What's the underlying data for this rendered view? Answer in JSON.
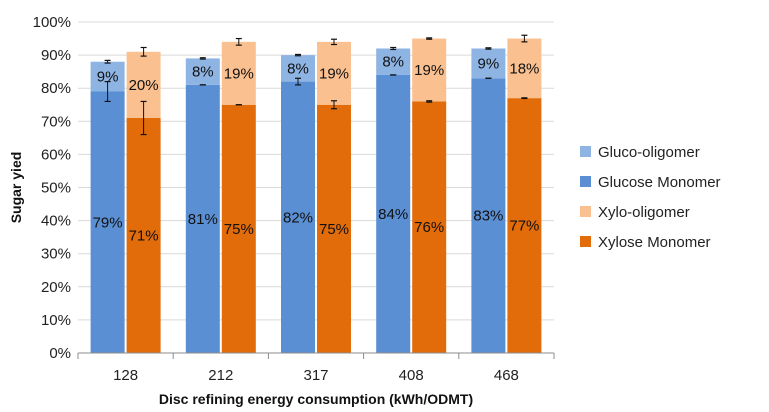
{
  "chart_data": {
    "type": "bar",
    "subtype": "grouped-stacked",
    "xlabel": "Disc refining energy consumption (kWh/ODMT)",
    "ylabel": "Sugar yied",
    "ylim": [
      0,
      100
    ],
    "yticks": [
      "0%",
      "10%",
      "20%",
      "30%",
      "40%",
      "50%",
      "60%",
      "70%",
      "80%",
      "90%",
      "100%"
    ],
    "grid": true,
    "legend_position": "right",
    "categories": [
      "128",
      "212",
      "317",
      "408",
      "468"
    ],
    "groups": [
      {
        "name": "Glucose",
        "stack": [
          {
            "name": "Glucose Monomer",
            "color": "#5b8fd4",
            "values": [
              79,
              81,
              82,
              84,
              83
            ],
            "labels": [
              "79%",
              "81%",
              "82%",
              "84%",
              "83%"
            ],
            "error": [
              3,
              0,
              1,
              0,
              0
            ]
          },
          {
            "name": "Gluco-oligomer",
            "color": "#8eb4e3",
            "values": [
              9,
              8,
              8,
              8,
              9
            ],
            "labels": [
              "9%",
              "8%",
              "8%",
              "8%",
              "9%"
            ],
            "error": [
              0.4,
              0.2,
              0.2,
              0.3,
              0.2
            ]
          }
        ]
      },
      {
        "name": "Xylose",
        "stack": [
          {
            "name": "Xylose Monomer",
            "color": "#e26b0a",
            "values": [
              71,
              75,
              75,
              76,
              77
            ],
            "labels": [
              "71%",
              "75%",
              "75%",
              "76%",
              "77%"
            ],
            "error": [
              5,
              0,
              1.2,
              0.2,
              0.1
            ]
          },
          {
            "name": "Xylo-oligomer",
            "color": "#fac090",
            "values": [
              20,
              19,
              19,
              19,
              18
            ],
            "labels": [
              "20%",
              "19%",
              "19%",
              "19%",
              "18%"
            ],
            "error": [
              1.3,
              1,
              0.8,
              0.2,
              1
            ]
          }
        ]
      }
    ],
    "legend": [
      "Gluco-oligomer",
      "Glucose Monomer",
      "Xylo-oligomer",
      "Xylose Monomer"
    ]
  }
}
